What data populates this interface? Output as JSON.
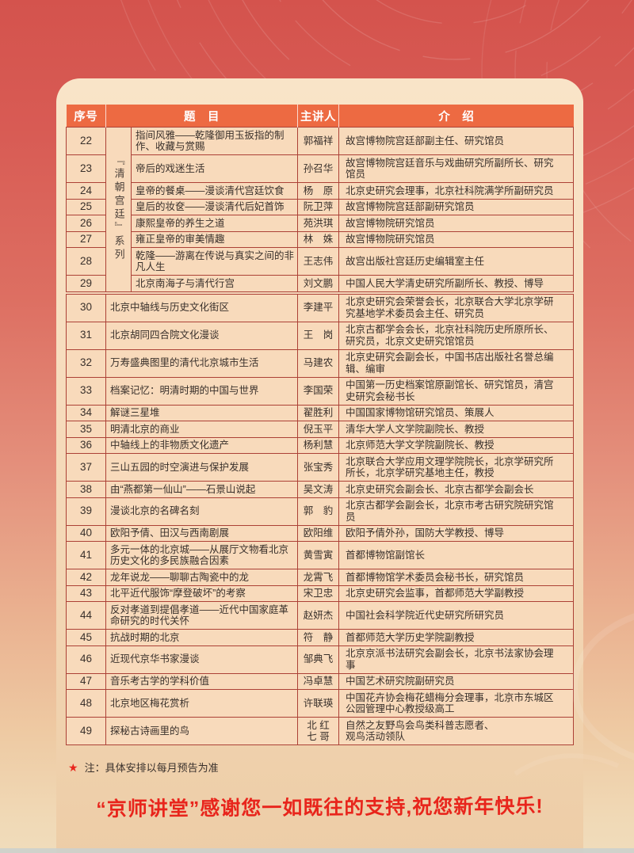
{
  "colors": {
    "header_bg": "#ed6a42",
    "cell_bg": "#f8dabb",
    "grid_line": "#ac4136",
    "accent_red": "#e8251c"
  },
  "table": {
    "headers": [
      "序号",
      "题　目",
      "主讲人",
      "介　绍"
    ],
    "group": {
      "label": "『清朝宫廷』系列",
      "row_count": 8
    },
    "rows": [
      {
        "no": "22",
        "title": "指间风雅——乾隆御用玉扳指的制作、收藏与赏赐",
        "speaker": "郭福祥",
        "intro": "故宫博物院宫廷部副主任、研究馆员"
      },
      {
        "no": "23",
        "title": "帝后的戏迷生活",
        "speaker": "孙召华",
        "intro": "故宫博物院宫廷音乐与戏曲研究所副所长、研究馆员"
      },
      {
        "no": "24",
        "title": "皇帝的餐桌——漫谈清代宫廷饮食",
        "speaker": "杨　原",
        "intro": "北京史研究会理事，北京社科院满学所副研究员"
      },
      {
        "no": "25",
        "title": "皇后的妆奁——漫谈清代后妃首饰",
        "speaker": "阮卫萍",
        "intro": "故宫博物院宫廷部副研究馆员"
      },
      {
        "no": "26",
        "title": "康熙皇帝的养生之道",
        "speaker": "苑洪琪",
        "intro": "故宫博物院研究馆员"
      },
      {
        "no": "27",
        "title": "雍正皇帝的审美情趣",
        "speaker": "林　姝",
        "intro": "故宫博物院研究馆员"
      },
      {
        "no": "28",
        "title": "乾隆——游离在传说与真实之间的非凡人生",
        "speaker": "王志伟",
        "intro": "故宫出版社宫廷历史编辑室主任"
      },
      {
        "no": "29",
        "title": "北京南海子与清代行宫",
        "speaker": "刘文鹏",
        "intro": "中国人民大学清史研究所副所长、教授、博导"
      },
      {
        "no": "30",
        "title": "北京中轴线与历史文化街区",
        "speaker": "李建平",
        "intro": "北京史研究会荣誉会长，北京联合大学北京学研究基地学术委员会主任、研究员"
      },
      {
        "no": "31",
        "title": "北京胡同四合院文化漫谈",
        "speaker": "王　岗",
        "intro": "北京古都学会会长，北京社科院历史所原所长、研究员，北京文史研究馆馆员"
      },
      {
        "no": "32",
        "title": "万寿盛典图里的清代北京城市生活",
        "speaker": "马建农",
        "intro": "北京史研究会副会长，中国书店出版社名誉总编辑、编审"
      },
      {
        "no": "33",
        "title": "档案记忆：明清时期的中国与世界",
        "speaker": "李国荣",
        "intro": "中国第一历史档案馆原副馆长、研究馆员，清宫史研究会秘书长"
      },
      {
        "no": "34",
        "title": "解谜三星堆",
        "speaker": "翟胜利",
        "intro": "中国国家博物馆研究馆员、策展人"
      },
      {
        "no": "35",
        "title": "明清北京的商业",
        "speaker": "倪玉平",
        "intro": "清华大学人文学院副院长、教授"
      },
      {
        "no": "36",
        "title": "中轴线上的非物质文化遗产",
        "speaker": "杨利慧",
        "intro": "北京师范大学文学院副院长、教授"
      },
      {
        "no": "37",
        "title": "三山五园的时空演进与保护发展",
        "speaker": "张宝秀",
        "intro": "北京联合大学应用文理学院院长，北京学研究所所长，北京学研究基地主任，教授"
      },
      {
        "no": "38",
        "title": "由“燕都第一仙山”——石景山说起",
        "speaker": "吴文涛",
        "intro": "北京史研究会副会长、北京古都学会副会长"
      },
      {
        "no": "39",
        "title": "漫谈北京的名碑名刻",
        "speaker": "郭　豹",
        "intro": "北京古都学会副会长，北京市考古研究院研究馆员"
      },
      {
        "no": "40",
        "title": "欧阳予倩、田汉与西南剧展",
        "speaker": "欧阳维",
        "intro": "欧阳予倩外孙，国防大学教授、博导"
      },
      {
        "no": "41",
        "title": "多元一体的北京城——从展厅文物看北京历史文化的多民族融合因素",
        "speaker": "黄雪寅",
        "intro": "首都博物馆副馆长"
      },
      {
        "no": "42",
        "title": "龙年说龙——聊聊古陶瓷中的龙",
        "speaker": "龙霄飞",
        "intro": "首都博物馆学术委员会秘书长，研究馆员"
      },
      {
        "no": "43",
        "title": "北平近代服饰“摩登破坏”的考察",
        "speaker": "宋卫忠",
        "intro": "北京史研究会监事，首都师范大学副教授"
      },
      {
        "no": "44",
        "title": "反对孝道到提倡孝道——近代中国家庭革命研究的时代关怀",
        "speaker": "赵妍杰",
        "intro": "中国社会科学院近代史研究所研究员"
      },
      {
        "no": "45",
        "title": "抗战时期的北京",
        "speaker": "符　静",
        "intro": "首都师范大学历史学院副教授"
      },
      {
        "no": "46",
        "title": "近现代京华书家漫谈",
        "speaker": "邹典飞",
        "intro": "北京京派书法研究会副会长，北京书法家协会理事"
      },
      {
        "no": "47",
        "title": "音乐考古学的学科价值",
        "speaker": "冯卓慧",
        "intro": "中国艺术研究院副研究员"
      },
      {
        "no": "48",
        "title": "北京地区梅花赏析",
        "speaker": "许联瑛",
        "intro": "中国花卉协会梅花蜡梅分会理事，北京市东城区公园管理中心教授级高工"
      },
      {
        "no": "49",
        "title": "探秘古诗画里的鸟",
        "speaker": "北 红\n七 哥",
        "intro": "自然之友野鸟会鸟类科普志愿者、\n观鸟活动领队"
      }
    ]
  },
  "note": {
    "star": "★",
    "text": "注：具体安排以每月预告为准"
  },
  "footer": {
    "message": "“京师讲堂”感谢您一如既往的支持,祝您新年快乐!"
  }
}
